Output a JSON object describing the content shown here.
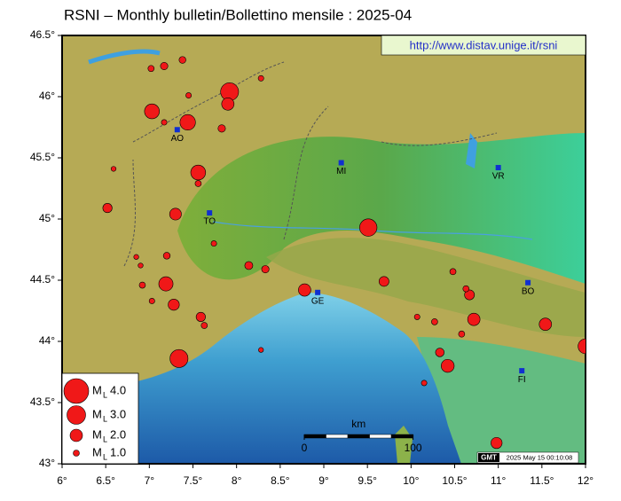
{
  "title": "RSNI – Monthly bulletin/Bollettino mensile : 2025-04",
  "url": "http://www.distav.unige.it/rsni",
  "xlim": [
    6,
    12
  ],
  "ylim": [
    43,
    46.5
  ],
  "xticks": [
    {
      "value": 6,
      "label": "6°"
    },
    {
      "value": 6.5,
      "label": "6.5°"
    },
    {
      "value": 7,
      "label": "7°"
    },
    {
      "value": 7.5,
      "label": "7.5°"
    },
    {
      "value": 8,
      "label": "8°"
    },
    {
      "value": 8.5,
      "label": "8.5°"
    },
    {
      "value": 9,
      "label": "9°"
    },
    {
      "value": 9.5,
      "label": "9.5°"
    },
    {
      "value": 10,
      "label": "10°"
    },
    {
      "value": 10.5,
      "label": "10.5°"
    },
    {
      "value": 11,
      "label": "11°"
    },
    {
      "value": 11.5,
      "label": "11.5°"
    },
    {
      "value": 12,
      "label": "12°"
    }
  ],
  "yticks": [
    {
      "value": 43,
      "label": "43°"
    },
    {
      "value": 43.5,
      "label": "43.5°"
    },
    {
      "value": 44,
      "label": "44°"
    },
    {
      "value": 44.5,
      "label": "44.5°"
    },
    {
      "value": 45,
      "label": "45°"
    },
    {
      "value": 45.5,
      "label": "45.5°"
    },
    {
      "value": 46,
      "label": "46°"
    },
    {
      "value": 46.5,
      "label": "46.5°"
    }
  ],
  "cities": [
    {
      "label": "AO",
      "lon": 7.32,
      "lat": 45.73
    },
    {
      "label": "MI",
      "lon": 9.2,
      "lat": 45.46
    },
    {
      "label": "VR",
      "lon": 11.0,
      "lat": 45.42
    },
    {
      "label": "TO",
      "lon": 7.69,
      "lat": 45.05
    },
    {
      "label": "GE",
      "lon": 8.93,
      "lat": 44.4
    },
    {
      "label": "BO",
      "lon": 11.34,
      "lat": 44.48
    },
    {
      "label": "FI",
      "lon": 11.27,
      "lat": 43.76
    }
  ],
  "events": [
    {
      "lon": 7.92,
      "lat": 46.04,
      "mag": 2.9
    },
    {
      "lon": 7.9,
      "lat": 45.94,
      "mag": 2.0
    },
    {
      "lon": 7.03,
      "lat": 45.88,
      "mag": 2.4
    },
    {
      "lon": 7.44,
      "lat": 45.79,
      "mag": 2.5
    },
    {
      "lon": 7.56,
      "lat": 45.38,
      "mag": 2.4
    },
    {
      "lon": 7.56,
      "lat": 45.29,
      "mag": 1.0
    },
    {
      "lon": 6.52,
      "lat": 45.09,
      "mag": 1.5
    },
    {
      "lon": 7.3,
      "lat": 45.04,
      "mag": 1.9
    },
    {
      "lon": 9.51,
      "lat": 44.93,
      "mag": 2.8
    },
    {
      "lon": 7.19,
      "lat": 44.47,
      "mag": 2.3
    },
    {
      "lon": 7.28,
      "lat": 44.3,
      "mag": 1.8
    },
    {
      "lon": 7.59,
      "lat": 44.2,
      "mag": 1.5
    },
    {
      "lon": 7.34,
      "lat": 43.86,
      "mag": 2.9
    },
    {
      "lon": 8.78,
      "lat": 44.42,
      "mag": 2.0
    },
    {
      "lon": 9.69,
      "lat": 44.49,
      "mag": 1.6
    },
    {
      "lon": 10.67,
      "lat": 44.38,
      "mag": 1.6
    },
    {
      "lon": 10.72,
      "lat": 44.18,
      "mag": 2.0
    },
    {
      "lon": 11.54,
      "lat": 44.14,
      "mag": 2.0
    },
    {
      "lon": 12.0,
      "lat": 43.96,
      "mag": 2.4
    },
    {
      "lon": 10.42,
      "lat": 43.8,
      "mag": 2.1
    },
    {
      "lon": 10.33,
      "lat": 43.91,
      "mag": 1.4
    },
    {
      "lon": 10.98,
      "lat": 43.17,
      "mag": 1.8
    },
    {
      "lon": 7.17,
      "lat": 46.25,
      "mag": 1.2
    },
    {
      "lon": 7.38,
      "lat": 46.3,
      "mag": 1.1
    },
    {
      "lon": 7.02,
      "lat": 46.23,
      "mag": 1.0
    },
    {
      "lon": 8.14,
      "lat": 44.62,
      "mag": 1.3
    },
    {
      "lon": 8.33,
      "lat": 44.59,
      "mag": 1.2
    },
    {
      "lon": 7.2,
      "lat": 44.7,
      "mag": 1.1
    },
    {
      "lon": 6.59,
      "lat": 45.41,
      "mag": 0.8
    },
    {
      "lon": 7.63,
      "lat": 44.13,
      "mag": 1.0
    },
    {
      "lon": 7.83,
      "lat": 45.74,
      "mag": 1.2
    },
    {
      "lon": 6.92,
      "lat": 44.46,
      "mag": 1.0
    },
    {
      "lon": 6.9,
      "lat": 44.62,
      "mag": 0.8
    },
    {
      "lon": 6.85,
      "lat": 44.69,
      "mag": 0.8
    },
    {
      "lon": 7.03,
      "lat": 44.33,
      "mag": 0.9
    },
    {
      "lon": 7.45,
      "lat": 46.01,
      "mag": 0.9
    },
    {
      "lon": 7.17,
      "lat": 45.79,
      "mag": 0.9
    },
    {
      "lon": 8.28,
      "lat": 46.15,
      "mag": 0.9
    },
    {
      "lon": 10.48,
      "lat": 44.57,
      "mag": 1.0
    },
    {
      "lon": 10.27,
      "lat": 44.16,
      "mag": 1.0
    },
    {
      "lon": 10.58,
      "lat": 44.06,
      "mag": 1.0
    },
    {
      "lon": 10.15,
      "lat": 43.66,
      "mag": 0.9
    },
    {
      "lon": 10.63,
      "lat": 44.43,
      "mag": 1.0
    },
    {
      "lon": 8.28,
      "lat": 43.93,
      "mag": 0.8
    },
    {
      "lon": 7.74,
      "lat": 44.8,
      "mag": 0.9
    },
    {
      "lon": 10.07,
      "lat": 44.2,
      "mag": 0.9
    }
  ],
  "legend": {
    "symbol": "M",
    "subscript": "L",
    "entries": [
      {
        "value": 4,
        "label": "4.0"
      },
      {
        "value": 3,
        "label": "3.0"
      },
      {
        "value": 2,
        "label": "2.0"
      },
      {
        "value": 1,
        "label": "1.0"
      }
    ]
  },
  "scale_bar": {
    "unit": "km",
    "ticks": [
      0,
      100
    ]
  },
  "timestamp_logo": "GMT",
  "timestamp": "2025 May 15 00:10:08"
}
